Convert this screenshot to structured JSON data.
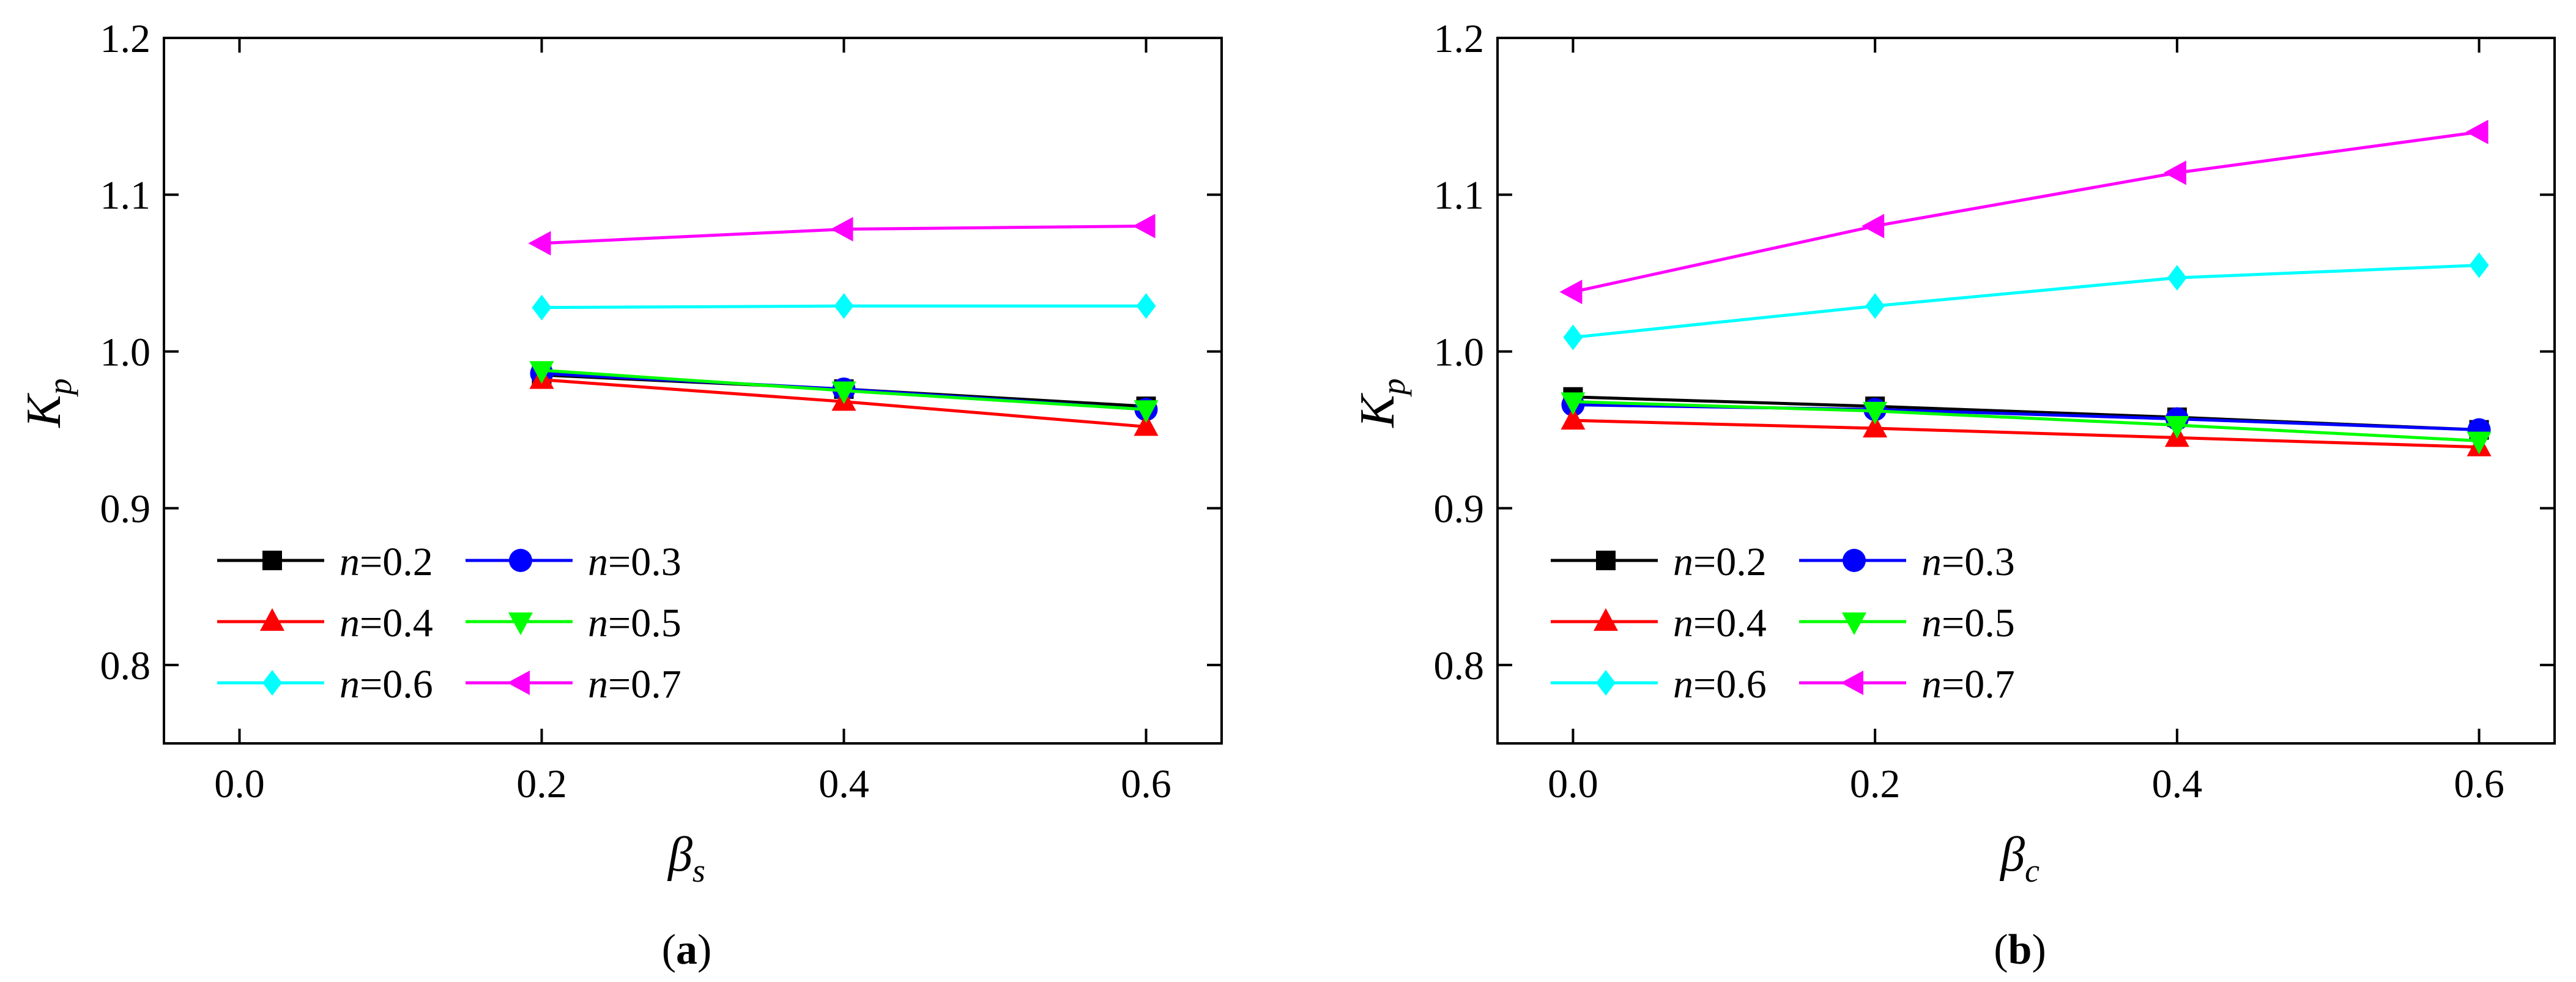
{
  "chart_data": [
    {
      "type": "line",
      "panel_label_open": "(",
      "panel_label_letter": "a",
      "panel_label_close": ")",
      "xlabel": {
        "symbol": "β",
        "subscript": "s"
      },
      "ylabel": {
        "symbol": "K",
        "subscript": "p"
      },
      "xlim": [
        -0.05,
        0.65
      ],
      "ylim": [
        0.75,
        1.2
      ],
      "xticks": [
        0.0,
        0.2,
        0.4,
        0.6
      ],
      "xtick_labels": [
        "0.0",
        "0.2",
        "0.4",
        "0.6"
      ],
      "yticks": [
        0.8,
        0.9,
        1.0,
        1.1,
        1.2
      ],
      "ytick_labels": [
        "0.8",
        "0.9",
        "1.0",
        "1.1",
        "1.2"
      ],
      "legend_position": "bottom-left",
      "x": [
        0.2,
        0.4,
        0.6
      ],
      "series": [
        {
          "name": "n=0.2",
          "var": "n",
          "eq": "=0.2",
          "color": "#000000",
          "marker": "square",
          "values": [
            0.985,
            0.976,
            0.965
          ]
        },
        {
          "name": "n=0.3",
          "var": "n",
          "eq": "=0.3",
          "color": "#0000ff",
          "marker": "circle",
          "values": [
            0.986,
            0.976,
            0.963
          ]
        },
        {
          "name": "n=0.4",
          "var": "n",
          "eq": "=0.4",
          "color": "#ff0000",
          "marker": "triangle-up",
          "values": [
            0.982,
            0.968,
            0.952
          ]
        },
        {
          "name": "n=0.5",
          "var": "n",
          "eq": "=0.5",
          "color": "#00ff00",
          "marker": "triangle-down",
          "values": [
            0.988,
            0.975,
            0.963
          ]
        },
        {
          "name": "n=0.6",
          "var": "n",
          "eq": "=0.6",
          "color": "#00ffff",
          "marker": "diamond",
          "values": [
            1.028,
            1.029,
            1.029
          ]
        },
        {
          "name": "n=0.7",
          "var": "n",
          "eq": "=0.7",
          "color": "#ff00ff",
          "marker": "triangle-left",
          "values": [
            1.069,
            1.078,
            1.08
          ]
        }
      ]
    },
    {
      "type": "line",
      "panel_label_open": "(",
      "panel_label_letter": "b",
      "panel_label_close": ")",
      "xlabel": {
        "symbol": "β",
        "subscript": "c"
      },
      "ylabel": {
        "symbol": "K",
        "subscript": "p"
      },
      "xlim": [
        -0.05,
        0.65
      ],
      "ylim": [
        0.75,
        1.2
      ],
      "xticks": [
        0.0,
        0.2,
        0.4,
        0.6
      ],
      "xtick_labels": [
        "0.0",
        "0.2",
        "0.4",
        "0.6"
      ],
      "yticks": [
        0.8,
        0.9,
        1.0,
        1.1,
        1.2
      ],
      "ytick_labels": [
        "0.8",
        "0.9",
        "1.0",
        "1.1",
        "1.2"
      ],
      "legend_position": "bottom-left",
      "x": [
        0.0,
        0.2,
        0.4,
        0.6
      ],
      "series": [
        {
          "name": "n=0.2",
          "var": "n",
          "eq": "=0.2",
          "color": "#000000",
          "marker": "square",
          "values": [
            0.971,
            0.965,
            0.958,
            0.95
          ]
        },
        {
          "name": "n=0.3",
          "var": "n",
          "eq": "=0.3",
          "color": "#0000ff",
          "marker": "circle",
          "values": [
            0.966,
            0.963,
            0.957,
            0.95
          ]
        },
        {
          "name": "n=0.4",
          "var": "n",
          "eq": "=0.4",
          "color": "#ff0000",
          "marker": "triangle-up",
          "values": [
            0.956,
            0.951,
            0.945,
            0.939
          ]
        },
        {
          "name": "n=0.5",
          "var": "n",
          "eq": "=0.5",
          "color": "#00ff00",
          "marker": "triangle-down",
          "values": [
            0.968,
            0.962,
            0.953,
            0.943
          ]
        },
        {
          "name": "n=0.6",
          "var": "n",
          "eq": "=0.6",
          "color": "#00ffff",
          "marker": "diamond",
          "values": [
            1.009,
            1.029,
            1.047,
            1.055
          ]
        },
        {
          "name": "n=0.7",
          "var": "n",
          "eq": "=0.7",
          "color": "#ff00ff",
          "marker": "triangle-left",
          "values": [
            1.038,
            1.08,
            1.114,
            1.14
          ]
        }
      ]
    }
  ]
}
